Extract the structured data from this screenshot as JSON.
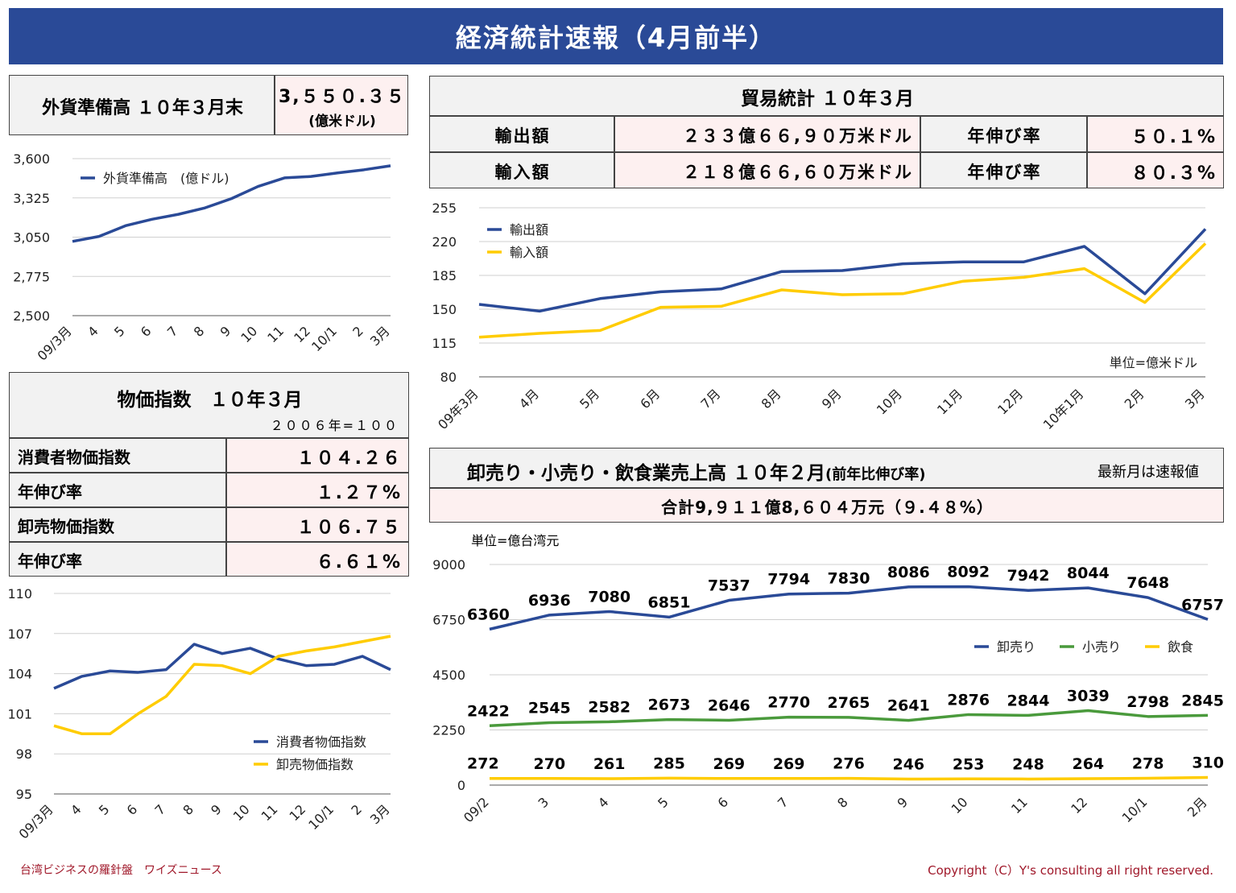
{
  "title": "経済統計速報（4月前半）",
  "reserves": {
    "label": "外貨準備高 １０年３月末",
    "value": "3,５５０.３５",
    "unit": "(億米ドル)"
  },
  "trade": {
    "title": "貿易統計 １０年３月",
    "rows": [
      {
        "label": "輸出額",
        "value": "２３３億６６,９０万米ドル",
        "rate_label": "年伸び率",
        "rate": "５０.１%"
      },
      {
        "label": "輸入額",
        "value": "２１８億６６,６０万米ドル",
        "rate_label": "年伸び率",
        "rate": "８０.３%"
      }
    ]
  },
  "prices": {
    "title": "物価指数　１０年３月",
    "base": "２００６年=１００",
    "rows": [
      {
        "label": "消費者物価指数",
        "value": "１０４.２６"
      },
      {
        "label": "年伸び率",
        "value": "１.２７%"
      },
      {
        "label": "卸売物価指数",
        "value": "１０６.７５"
      },
      {
        "label": "年伸び率",
        "value": "６.６１%"
      }
    ]
  },
  "sales": {
    "title": "卸売り・小売り・飲食業売上高 １０年２月",
    "title_sub": "(前年比伸び率)",
    "note": "最新月は速報値",
    "total": "合計9,９１１億8,６０４万元（９.４８%）",
    "unit": "単位=億台湾元"
  },
  "footer": {
    "left": "台湾ビジネスの羅針盤　ワイズニュース",
    "right": "Copyright（C）Y's consulting all right reserved."
  },
  "colors": {
    "navy": "#2a4a97",
    "yellow": "#ffcc00",
    "green": "#4a9a3c"
  },
  "chart_data": [
    {
      "id": "reserves",
      "type": "line",
      "categories": [
        "09/3月",
        "4",
        "5",
        "6",
        "7",
        "8",
        "9",
        "10",
        "11",
        "12",
        "10/1",
        "2",
        "3月"
      ],
      "series": [
        {
          "name": "外貨準備高　(億ドル)",
          "values": [
            3020,
            3055,
            3130,
            3175,
            3210,
            3255,
            3320,
            3405,
            3465,
            3475,
            3500,
            3522,
            3550
          ]
        }
      ],
      "ylim": [
        2500,
        3600
      ],
      "yticks": [
        "2,500",
        "2,775",
        "3,050",
        "3,325",
        "3,600"
      ],
      "legend": "top-left"
    },
    {
      "id": "trade",
      "type": "line",
      "categories": [
        "09年3月",
        "4月",
        "5月",
        "6月",
        "7月",
        "8月",
        "9月",
        "10月",
        "11月",
        "12月",
        "10年1月",
        "2月",
        "3月"
      ],
      "series": [
        {
          "name": "輸出額",
          "values": [
            155,
            148,
            161,
            168,
            171,
            189,
            190,
            197,
            199,
            199,
            215,
            166,
            233
          ]
        },
        {
          "name": "輸入額",
          "values": [
            121,
            125,
            128,
            152,
            153,
            170,
            165,
            166,
            179,
            183,
            192,
            157,
            218
          ]
        }
      ],
      "ylim": [
        80,
        255
      ],
      "yticks": [
        "80",
        "115",
        "150",
        "185",
        "220",
        "255"
      ],
      "note": "単位=億米ドル",
      "legend": "top-left"
    },
    {
      "id": "prices",
      "type": "line",
      "categories": [
        "09/3月",
        "4",
        "5",
        "6",
        "7",
        "8",
        "9",
        "10",
        "11",
        "12",
        "10/1",
        "2",
        "3月"
      ],
      "series": [
        {
          "name": "消費者物価指数",
          "values": [
            102.9,
            103.8,
            104.2,
            104.1,
            104.3,
            106.2,
            105.5,
            105.9,
            105.1,
            104.6,
            104.7,
            105.3,
            104.3
          ]
        },
        {
          "name": "卸売物価指数",
          "values": [
            100.1,
            99.5,
            99.5,
            101.0,
            102.3,
            104.7,
            104.6,
            104.0,
            105.3,
            105.7,
            106.0,
            106.4,
            106.8
          ]
        }
      ],
      "ylim": [
        95,
        110
      ],
      "yticks": [
        "95",
        "98",
        "101",
        "104",
        "107",
        "110"
      ],
      "legend": "bottom-right"
    },
    {
      "id": "sales",
      "type": "line",
      "categories": [
        "09/2",
        "3",
        "4",
        "5",
        "6",
        "7",
        "8",
        "9",
        "10",
        "11",
        "12",
        "10/1",
        "2月"
      ],
      "series": [
        {
          "name": "卸売り",
          "values": [
            6360,
            6936,
            7080,
            6851,
            7537,
            7794,
            7830,
            8086,
            8092,
            7942,
            8044,
            7648,
            6757
          ]
        },
        {
          "name": "小売り",
          "values": [
            2422,
            2545,
            2582,
            2673,
            2646,
            2770,
            2765,
            2641,
            2876,
            2844,
            3039,
            2798,
            2845
          ]
        },
        {
          "name": "飲食",
          "values": [
            272,
            270,
            261,
            285,
            269,
            269,
            276,
            246,
            253,
            248,
            264,
            278,
            310
          ]
        }
      ],
      "ylim": [
        0,
        9000
      ],
      "yticks": [
        "0",
        "2250",
        "4500",
        "6750",
        "9000"
      ],
      "legend": "top-right"
    }
  ]
}
